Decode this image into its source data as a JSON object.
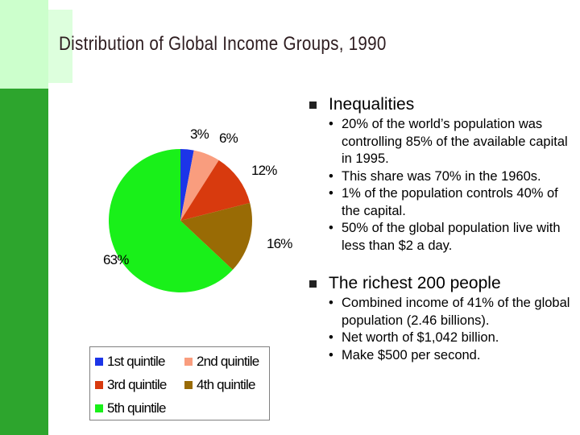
{
  "slide": {
    "title": "Distribution of Global Income Groups, 1990"
  },
  "chart_data": {
    "type": "pie",
    "title": "",
    "slices": [
      {
        "label": "1st quintile",
        "value": 3,
        "value_label": "3%",
        "color": "#1c35e8"
      },
      {
        "label": "2nd quintile",
        "value": 6,
        "value_label": "6%",
        "color": "#f99d7e"
      },
      {
        "label": "3rd quintile",
        "value": 12,
        "value_label": "12%",
        "color": "#d83a0e"
      },
      {
        "label": "4th quintile",
        "value": 16,
        "value_label": "16%",
        "color": "#996b05"
      },
      {
        "label": "5th quintile",
        "value": 63,
        "value_label": "63%",
        "color": "#19f019"
      }
    ],
    "legend_position": "bottom"
  },
  "bullets": {
    "bullet_char": "•",
    "sections": [
      {
        "heading": "Inequalities",
        "items": [
          "20% of the world’s population was controlling 85% of the available capital in 1995.",
          "This share was 70% in the 1960s.",
          "1% of the population controls 40% of the capital.",
          "50% of the global population live with less than $2 a day."
        ]
      },
      {
        "heading": "The richest 200 people",
        "items": [
          "Combined income of 41% of the global population (2.46 billions).",
          "Net worth of $1,042 billion.",
          "Make $500 per second."
        ]
      }
    ]
  },
  "colors": {
    "band_light": "#ccffcc",
    "band_dark": "#2da52d",
    "title_text": "#2e1d20"
  }
}
